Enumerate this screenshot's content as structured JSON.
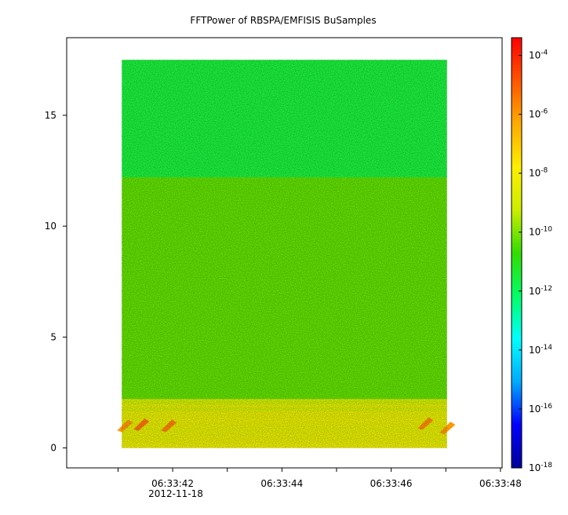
{
  "chart_data": {
    "type": "heatmap",
    "title": "FFTPower of RBSPA/EMFISIS  BuSamples",
    "x_axis": {
      "ticks": [
        {
          "value": 41,
          "label": ""
        },
        {
          "value": 42,
          "label": "06:33:42"
        },
        {
          "value": 43,
          "label": ""
        },
        {
          "value": 44,
          "label": "06:33:44"
        },
        {
          "value": 45,
          "label": ""
        },
        {
          "value": 46,
          "label": "06:33:46"
        },
        {
          "value": 47,
          "label": ""
        },
        {
          "value": 48,
          "label": "06:33:48"
        }
      ],
      "date_label": "2012-11-18",
      "range": [
        40.06,
        48.03
      ],
      "data_range": [
        41.07,
        47.02
      ]
    },
    "y_axis": {
      "range": [
        -0.9,
        18.5
      ],
      "data_range": [
        0,
        17.5
      ],
      "ticks": [
        {
          "value": 0,
          "label": "0"
        },
        {
          "value": 5,
          "label": "5"
        },
        {
          "value": 10,
          "label": "10"
        },
        {
          "value": 15,
          "label": "15"
        }
      ]
    },
    "colorbar": {
      "scale": "log",
      "range_exponent": [
        -18,
        -3.4
      ],
      "colors": [
        "#000099",
        "#0000ff",
        "#00aaff",
        "#00ffff",
        "#00ff66",
        "#33dd00",
        "#ccee00",
        "#ffee00",
        "#ffaa00",
        "#ff5500",
        "#ff0000"
      ],
      "ticks": [
        {
          "exp": -4,
          "base": "10",
          "sup": "-4"
        },
        {
          "exp": -6,
          "base": "10",
          "sup": "-6"
        },
        {
          "exp": -8,
          "base": "10",
          "sup": "-8"
        },
        {
          "exp": -10,
          "base": "10",
          "sup": "-10"
        },
        {
          "exp": -12,
          "base": "10",
          "sup": "-12"
        },
        {
          "exp": -14,
          "base": "10",
          "sup": "-14"
        },
        {
          "exp": -16,
          "base": "10",
          "sup": "-16"
        },
        {
          "exp": -18,
          "base": "10",
          "sup": "-18"
        }
      ]
    },
    "regions": [
      {
        "y": [
          12.2,
          17.5
        ],
        "log_power": -11.6,
        "note": "upper band"
      },
      {
        "y": [
          2.2,
          12.2
        ],
        "log_power": -10.3,
        "note": "mid band"
      },
      {
        "y": [
          0,
          2.2
        ],
        "log_power": -8.5,
        "note": "low-frequency lines"
      }
    ],
    "lines": [
      {
        "y": 0.1,
        "log_power": -8.2
      },
      {
        "y": 0.75,
        "log_power": -8.6
      },
      {
        "y": 1.25,
        "log_power": -8.4
      },
      {
        "y": 1.75,
        "log_power": -9.0
      },
      {
        "y": 2.05,
        "log_power": -9.2
      }
    ],
    "bursts": [
      {
        "x": 41.1,
        "y": 1.0,
        "log_power": -6.0
      },
      {
        "x": 41.4,
        "y": 1.05,
        "log_power": -5.4
      },
      {
        "x": 41.9,
        "y": 1.0,
        "log_power": -5.6
      },
      {
        "x": 46.6,
        "y": 1.1,
        "log_power": -5.8
      },
      {
        "x": 47.0,
        "y": 0.9,
        "log_power": -6.0
      }
    ]
  }
}
